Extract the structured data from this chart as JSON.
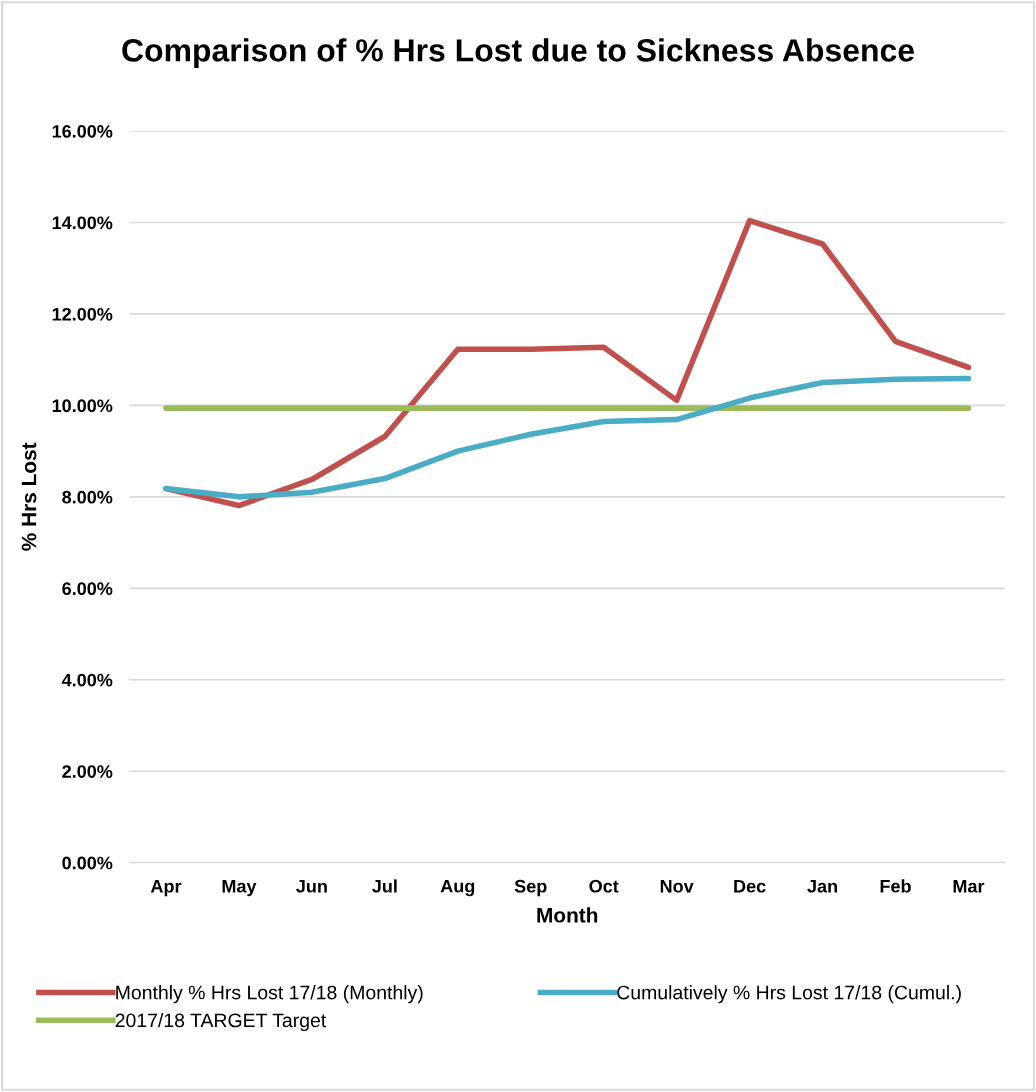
{
  "chart_data": {
    "type": "line",
    "title": "Comparison of % Hrs Lost due to Sickness Absence",
    "xlabel": "Month",
    "ylabel": "% Hrs Lost",
    "categories": [
      "Apr",
      "May",
      "Jun",
      "Jul",
      "Aug",
      "Sep",
      "Oct",
      "Nov",
      "Dec",
      "Jan",
      "Feb",
      "Mar"
    ],
    "series": [
      {
        "name": "Monthly % Hrs Lost 17/18 (Monthly)",
        "color": "#c0504d",
        "values": [
          8.18,
          7.81,
          8.38,
          9.32,
          11.23,
          11.23,
          11.27,
          10.11,
          14.04,
          13.53,
          11.4,
          10.83
        ]
      },
      {
        "name": "2017/18 TARGET Target",
        "color": "#9bbb59",
        "values": [
          9.94,
          9.94,
          9.94,
          9.94,
          9.94,
          9.94,
          9.94,
          9.94,
          9.94,
          9.94,
          9.94,
          9.94
        ]
      },
      {
        "name": "Cumulatively % Hrs Lost 17/18 (Cumul.)",
        "color": "#4bacc6",
        "values": [
          8.18,
          8.0,
          8.1,
          8.4,
          9.0,
          9.37,
          9.65,
          9.69,
          10.16,
          10.5,
          10.57,
          10.59
        ]
      }
    ],
    "ylim": [
      0,
      16
    ],
    "yticks": [
      {
        "value": 0,
        "label": "0.00%"
      },
      {
        "value": 2,
        "label": "2.00%"
      },
      {
        "value": 4,
        "label": "4.00%"
      },
      {
        "value": 6,
        "label": "6.00%"
      },
      {
        "value": 8,
        "label": "8.00%"
      },
      {
        "value": 10,
        "label": "10.00%"
      },
      {
        "value": 12,
        "label": "12.00%"
      },
      {
        "value": 14,
        "label": "14.00%"
      },
      {
        "value": 16,
        "label": "16.00%"
      }
    ],
    "grid": "y",
    "legend": "bottom",
    "marker": "none",
    "line_style": "solid"
  }
}
